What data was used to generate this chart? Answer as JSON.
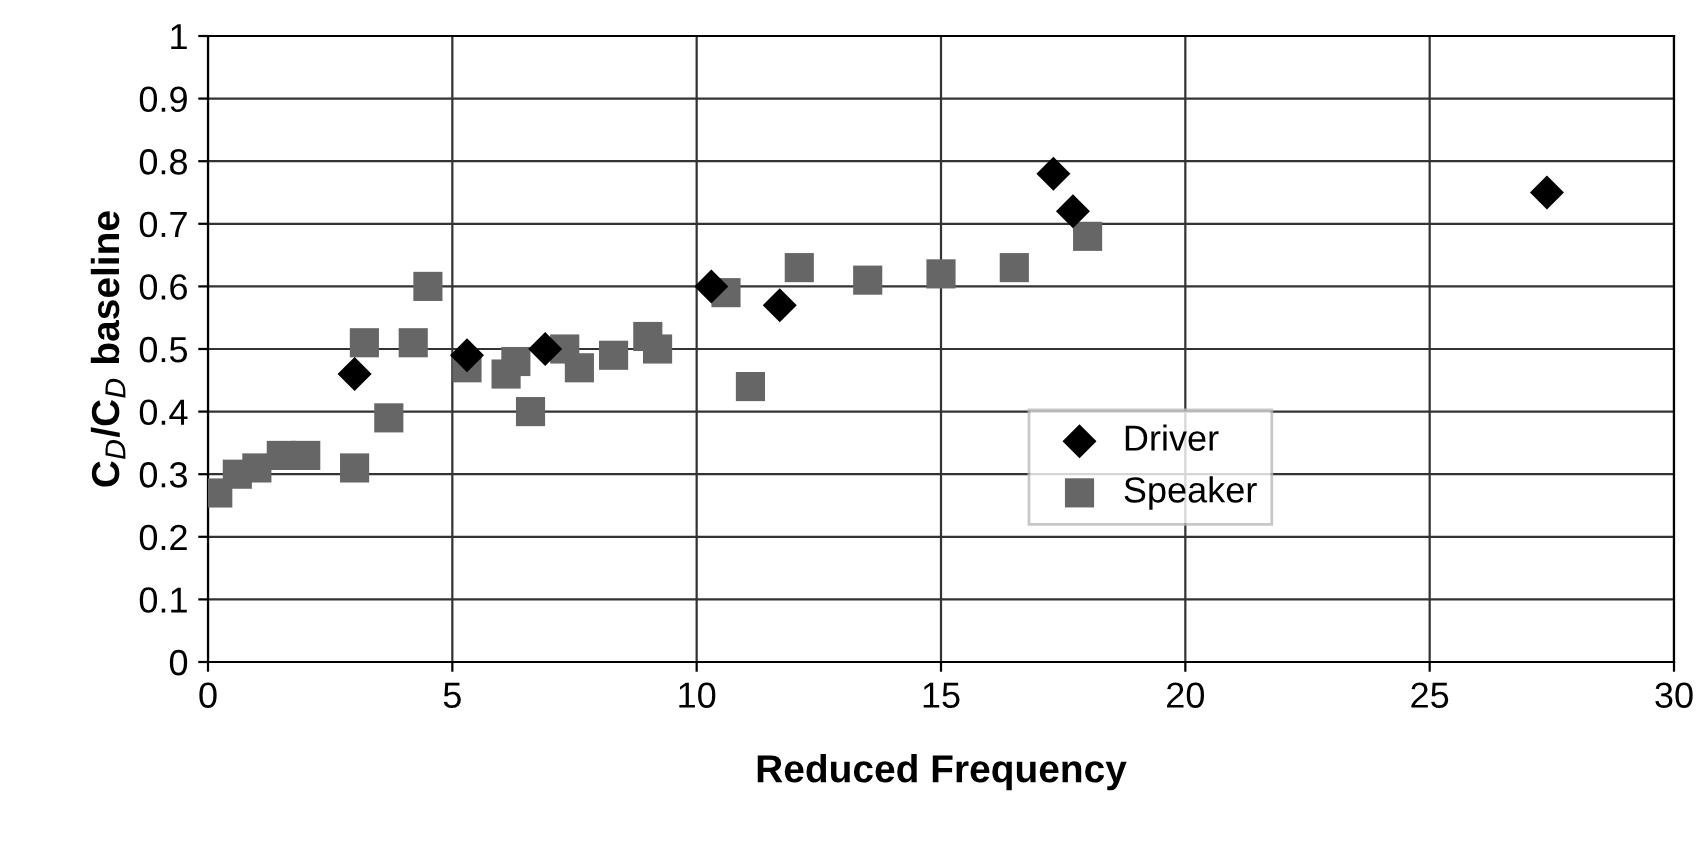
{
  "chart_data": {
    "type": "scatter",
    "xlabel": "Reduced Frequency",
    "ylabel": "C$_{D}$/C$_{D}$ baseline",
    "xlim": [
      0,
      30
    ],
    "xticks": [
      0,
      5,
      10,
      15,
      20,
      25,
      30
    ],
    "ylim": [
      0,
      1
    ],
    "yticks": [
      0,
      0.1,
      0.2,
      0.3,
      0.4,
      0.5,
      0.6,
      0.7,
      0.8,
      0.9,
      1
    ],
    "grid": true,
    "legend": "right",
    "series": [
      {
        "name": "Driver",
        "color": "#000000",
        "marker": "diamond",
        "x": [
          3.0,
          5.3,
          6.9,
          10.3,
          11.7,
          17.3,
          17.7,
          27.4
        ],
        "values": [
          0.46,
          0.49,
          0.5,
          0.6,
          0.57,
          0.78,
          0.72,
          0.75
        ]
      },
      {
        "name": "Speaker",
        "color": "#666666",
        "marker": "square",
        "x": [
          0.2,
          0.6,
          1.0,
          1.5,
          2.0,
          3.0,
          3.2,
          3.7,
          4.2,
          4.5,
          5.3,
          6.1,
          6.3,
          6.6,
          7.3,
          7.6,
          8.3,
          9.0,
          9.2,
          10.6,
          11.1,
          12.1,
          13.5,
          15.0,
          16.5,
          18.0
        ],
        "values": [
          0.27,
          0.3,
          0.31,
          0.33,
          0.33,
          0.31,
          0.51,
          0.39,
          0.51,
          0.6,
          0.47,
          0.46,
          0.48,
          0.4,
          0.5,
          0.47,
          0.49,
          0.52,
          0.5,
          0.59,
          0.44,
          0.63,
          0.61,
          0.62,
          0.63,
          0.68
        ]
      }
    ]
  }
}
